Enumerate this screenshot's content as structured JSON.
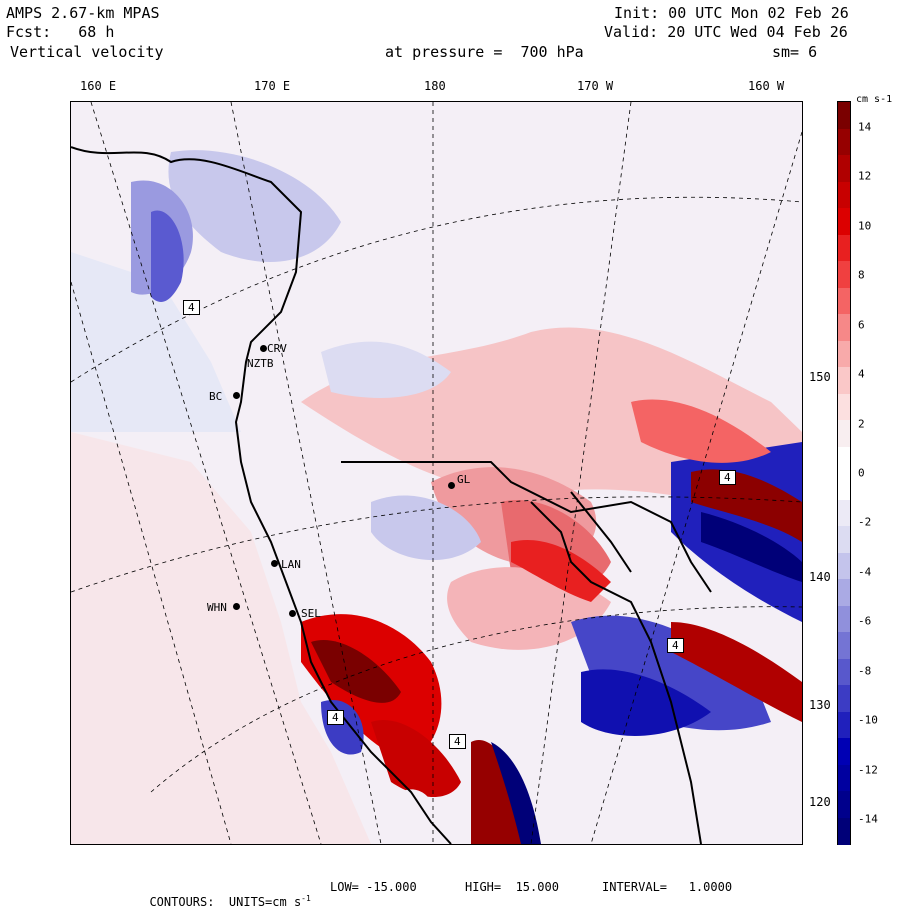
{
  "header": {
    "model": "AMPS 2.67-km MPAS",
    "fcst": "Fcst:   68 h",
    "field": "Vertical velocity",
    "init": "Init: 00 UTC Mon 02 Feb 26",
    "valid": "Valid: 20 UTC Wed 04 Feb 26",
    "level": "at pressure =  700 hPa",
    "smoothing": "sm= 6"
  },
  "map": {
    "lon_labels": [
      "160 E",
      "170 E",
      "180",
      "170 W",
      "160 W"
    ],
    "lat_labels": [
      "150 W",
      "140 W",
      "130 W",
      "120 W"
    ],
    "stations": [
      {
        "id": "CRV",
        "dot": true
      },
      {
        "id": "NZTB",
        "dot": false
      },
      {
        "id": "BC",
        "dot": true
      },
      {
        "id": "LAN",
        "dot": true
      },
      {
        "id": "WHN",
        "dot": true
      },
      {
        "id": "SEL",
        "dot": true
      },
      {
        "id": "GL",
        "dot": true
      }
    ],
    "extrema_markers": [
      "4",
      "4",
      "4",
      "4",
      "4"
    ]
  },
  "colorbar": {
    "units": "cm s-1",
    "tick_labels": [
      "14",
      "12",
      "10",
      "8",
      "6",
      "4",
      "2",
      "0",
      "-2",
      "-4",
      "-6",
      "-8",
      "-10",
      "-12",
      "-14"
    ],
    "colors": [
      "#7a0000",
      "#960000",
      "#b00000",
      "#c80000",
      "#dc0000",
      "#e82020",
      "#f04040",
      "#f46464",
      "#f68888",
      "#f8aaaa",
      "#fac8c8",
      "#fce0e0",
      "#f8eef0",
      "#ffffff",
      "#ffffff",
      "#eceaf6",
      "#dcdcf2",
      "#c4c4ec",
      "#aaaae4",
      "#9090dc",
      "#7474d4",
      "#5858cc",
      "#3c3cc4",
      "#2020bc",
      "#0000b4",
      "#0000a0",
      "#00008c",
      "#000078"
    ]
  },
  "footer": {
    "contours": "CONTOURS:  UNITS=cm s",
    "units_exp": "-1",
    "low": "LOW= -15.000",
    "high": "HIGH=  15.000",
    "interval": "INTERVAL=   1.0000"
  }
}
